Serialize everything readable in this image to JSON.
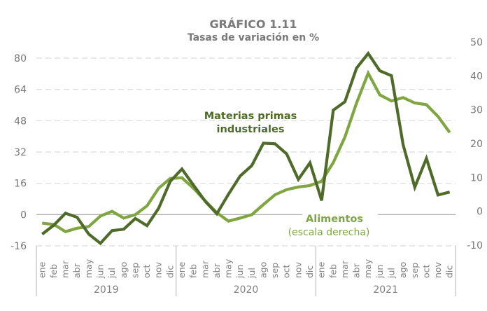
{
  "chart_data": {
    "type": "line",
    "title": "GRÁFICO 1.11",
    "subtitle": "Tasas de variación en %",
    "xlabel": "",
    "ylabel": "",
    "grid": true,
    "months": [
      "ene",
      "feb",
      "mar",
      "abr",
      "may",
      "jun",
      "jul",
      "ago",
      "sep",
      "oct",
      "nov",
      "dic"
    ],
    "years": [
      "2019",
      "2020",
      "2021"
    ],
    "left_axis": {
      "range": [
        -16,
        80
      ],
      "ticks": [
        80,
        64,
        48,
        32,
        16,
        0,
        -16
      ]
    },
    "right_axis": {
      "range": [
        -10,
        50
      ],
      "ticks": [
        50,
        40,
        30,
        20,
        10,
        0,
        -10
      ]
    },
    "series": [
      {
        "name": "Materias primas industriales",
        "label_lines": [
          "Materias primas",
          "industriales"
        ],
        "axis": "left",
        "color": "#4e6b2a",
        "values": [
          -10,
          -5.4,
          0.7,
          -1.4,
          -10,
          -14.7,
          -8.2,
          -7.5,
          -2,
          -5.7,
          3.2,
          17,
          23.3,
          15,
          6.8,
          0.4,
          10.4,
          19.7,
          25,
          36.5,
          36.2,
          31,
          18,
          26.5,
          7.2,
          53.4,
          57.7,
          74.9,
          82.4,
          73.5,
          71,
          35.8,
          14,
          28.7,
          10,
          11.5
        ]
      },
      {
        "name": "Alimentos",
        "label_lines": [
          "Alimentos",
          "(escala derecha)"
        ],
        "axis": "right",
        "color": "#7fa640",
        "values": [
          -3.5,
          -3.9,
          -6,
          -5,
          -4.5,
          -1.4,
          0,
          -2,
          -1,
          1.6,
          6.8,
          9.7,
          9.9,
          6.8,
          3.1,
          -0.4,
          -2.9,
          -2,
          -1,
          2,
          4.9,
          6.4,
          7.2,
          7.6,
          8.9,
          14.4,
          21.9,
          32,
          40.8,
          34.4,
          32.6,
          33.6,
          32,
          31.5,
          28,
          23.3
        ]
      }
    ],
    "legend": "inline-annotations"
  }
}
